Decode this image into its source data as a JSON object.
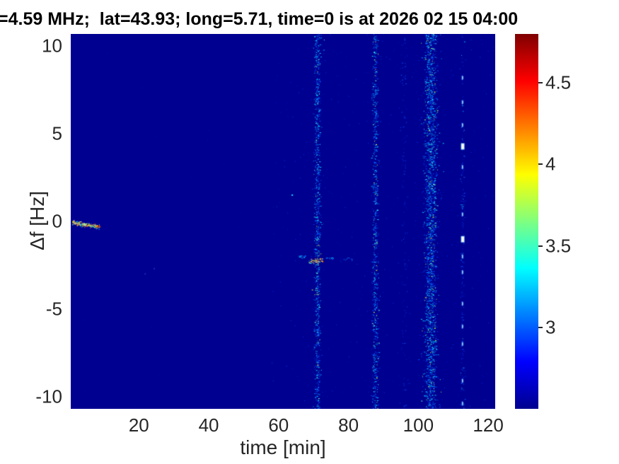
{
  "chart_data": {
    "type": "heatmap",
    "title": "=4.59 MHz;  lat=43.93; long=5.71, time=0 is at 2026 02 15 04:00",
    "xlabel": "time [min]",
    "ylabel": "Δf [Hz]",
    "xlim": [
      0.5,
      122
    ],
    "ylim": [
      -10.7,
      10.7
    ],
    "x_ticks": [
      20,
      40,
      60,
      80,
      100,
      120
    ],
    "y_ticks": [
      10,
      5,
      0,
      -5,
      -10
    ],
    "grid": false,
    "background_value_color": "#000090",
    "colorbar": {
      "position": "right",
      "range": [
        2.5,
        4.8
      ],
      "ticks": [
        4.5,
        4,
        3.5,
        3
      ],
      "colormap": "jet",
      "stops": [
        {
          "v": 2.5,
          "c": "#000090"
        },
        {
          "v": 2.7875,
          "c": "#0000ff"
        },
        {
          "v": 3.3625,
          "c": "#00ffff"
        },
        {
          "v": 3.9375,
          "c": "#ffff00"
        },
        {
          "v": 4.5125,
          "c": "#ff0000"
        },
        {
          "v": 4.8,
          "c": "#800000"
        }
      ]
    },
    "features": {
      "ambient": [
        {
          "t_range": [
            58,
            122
          ],
          "f_range": [
            -10.7,
            10.7
          ],
          "count": 560,
          "palette": [
            [
              "#0014b8",
              0.75
            ],
            [
              "#0034e6",
              0.25
            ]
          ]
        },
        {
          "t_range": [
            3,
            58
          ],
          "f_range": [
            -10.7,
            10.7
          ],
          "count": 16,
          "palette": [
            [
              "#0a12a8",
              1
            ]
          ]
        }
      ],
      "bands": [
        {
          "t": 71.0,
          "width": 2.6,
          "count": 950,
          "palette": [
            [
              "#0030dc",
              0.3
            ],
            [
              "#0058ff",
              0.25
            ],
            [
              "#00a0ff",
              0.2
            ],
            [
              "#00e4ff",
              0.16
            ],
            [
              "#70ffd8",
              0.06
            ],
            [
              "#d2ff4a",
              0.02
            ],
            [
              "#ffff30",
              0.01
            ]
          ]
        },
        {
          "t": 87.6,
          "width": 2.6,
          "count": 800,
          "palette": [
            [
              "#0030dc",
              0.3
            ],
            [
              "#0058ff",
              0.25
            ],
            [
              "#00a0ff",
              0.2
            ],
            [
              "#00e4ff",
              0.16
            ],
            [
              "#70ffd8",
              0.06
            ],
            [
              "#d2ff4a",
              0.02
            ],
            [
              "#ffff30",
              0.01
            ]
          ]
        },
        {
          "t": 95.8,
          "width": 3.0,
          "count": 130,
          "palette": [
            [
              "#0020c8",
              0.6
            ],
            [
              "#0048f0",
              0.4
            ]
          ]
        },
        {
          "t": 103.4,
          "width": 5.4,
          "count": 2050,
          "palette": [
            [
              "#0030dc",
              0.28
            ],
            [
              "#0058ff",
              0.25
            ],
            [
              "#00a0ff",
              0.2
            ],
            [
              "#00e4ff",
              0.17
            ],
            [
              "#70ffd8",
              0.06
            ],
            [
              "#a8ff50",
              0.03
            ],
            [
              "#ffff30",
              0.01
            ]
          ]
        },
        {
          "t": 112.6,
          "width": 1.6,
          "count": 170,
          "palette": [
            [
              "#0024cc",
              0.55
            ],
            [
              "#0058ff",
              0.3
            ],
            [
              "#00b4ff",
              0.15
            ]
          ]
        }
      ],
      "streaks": [
        {
          "t0": 0.8,
          "f0": -0.05,
          "t1": 8.8,
          "f1": -0.32,
          "jitter": 0.18,
          "count": 270,
          "palette": [
            [
              "#00ffff",
              0.18
            ],
            [
              "#9cffff",
              0.1
            ],
            [
              "#0082ff",
              0.14
            ],
            [
              "#ffff00",
              0.16
            ],
            [
              "#ff8c00",
              0.16
            ],
            [
              "#ff2d00",
              0.15
            ],
            [
              "#a00000",
              0.06
            ],
            [
              "#ffffff",
              0.05
            ]
          ]
        },
        {
          "t0": 68.6,
          "f0": -2.3,
          "t1": 72.6,
          "f1": -2.2,
          "jitter": 0.22,
          "count": 60,
          "palette": [
            [
              "#ff9000",
              0.28
            ],
            [
              "#ffe020",
              0.22
            ],
            [
              "#ff3000",
              0.2
            ],
            [
              "#00e0ff",
              0.2
            ],
            [
              "#ffffff",
              0.1
            ]
          ]
        },
        {
          "t0": 65.6,
          "f0": -2.0,
          "t1": 67.8,
          "f1": -2.0,
          "jitter": 0.12,
          "count": 16,
          "palette": [
            [
              "#00c8ff",
              0.6
            ],
            [
              "#0060ff",
              0.4
            ]
          ]
        },
        {
          "t0": 73.2,
          "f0": -2.1,
          "t1": 76.4,
          "f1": -2.1,
          "jitter": 0.12,
          "count": 14,
          "palette": [
            [
              "#00b4ff",
              0.5
            ],
            [
              "#0050f0",
              0.5
            ]
          ]
        },
        {
          "t0": 78.2,
          "f0": -2.15,
          "t1": 81.6,
          "f1": -2.15,
          "jitter": 0.12,
          "count": 12,
          "palette": [
            [
              "#00a8ff",
              0.5
            ],
            [
              "#004ae6",
              0.5
            ]
          ]
        }
      ],
      "dots": [
        {
          "t": 63.9,
          "f": 1.5,
          "color": "#00e6ff",
          "size": 2
        },
        {
          "t": 21.8,
          "f": -3.0,
          "color": "#1e28b4",
          "size": 2
        },
        {
          "t": 24.4,
          "f": -2.7,
          "color": "#1e28b4",
          "size": 2
        }
      ],
      "dotted_line": {
        "t": 112.6,
        "color": "#d8ffff",
        "bright_color": "#fffde0",
        "points": [
          {
            "f": 8.2
          },
          {
            "f": 6.8
          },
          {
            "f": 5.5
          },
          {
            "f": 4.3,
            "bright": true
          },
          {
            "f": 3.1
          },
          {
            "f": 0.4
          },
          {
            "f": -1.0,
            "bright": true
          },
          {
            "f": -2.0
          },
          {
            "f": -2.9
          },
          {
            "f": -4.7
          },
          {
            "f": -6.0
          },
          {
            "f": -7.0
          },
          {
            "f": -9.1
          },
          {
            "f": -10.4
          }
        ]
      }
    }
  }
}
